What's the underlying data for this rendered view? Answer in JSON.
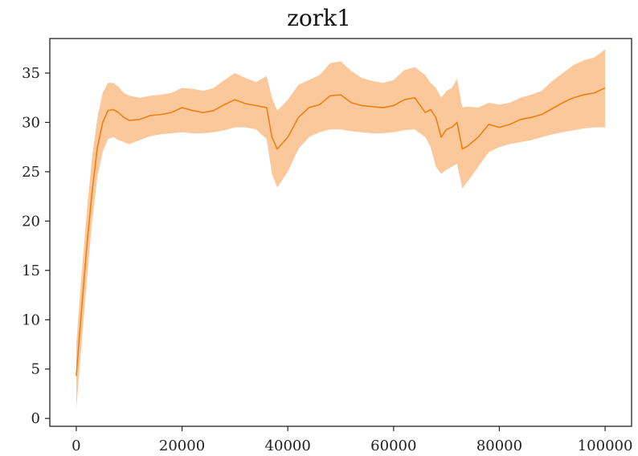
{
  "chart_data": {
    "type": "line",
    "title": "zork1",
    "xlabel": "",
    "ylabel": "",
    "xlim": [
      -5000,
      105000
    ],
    "ylim": [
      -0.8,
      38.5
    ],
    "xticks": [
      0,
      20000,
      40000,
      60000,
      80000,
      100000
    ],
    "yticks": [
      0,
      5,
      10,
      15,
      20,
      25,
      30,
      35
    ],
    "grid": false,
    "legend": "none",
    "colors": {
      "line": "#f07f13",
      "band": "#fbc597"
    },
    "series": [
      {
        "x": [
          0,
          1000,
          2000,
          3000,
          4000,
          5000,
          6000,
          7000,
          8000,
          9000,
          10000,
          12000,
          14000,
          16000,
          18000,
          20000,
          22000,
          24000,
          26000,
          28000,
          30000,
          32000,
          34000,
          36000,
          37000,
          38000,
          40000,
          42000,
          44000,
          46000,
          48000,
          50000,
          52000,
          54000,
          56000,
          58000,
          60000,
          62000,
          64000,
          66000,
          67000,
          68000,
          69000,
          70000,
          71000,
          72000,
          73000,
          74000,
          76000,
          78000,
          80000,
          82000,
          84000,
          86000,
          88000,
          90000,
          92000,
          94000,
          96000,
          98000,
          100000
        ],
        "mean": [
          4.3,
          11,
          17.5,
          23,
          27.5,
          30,
          31.2,
          31.3,
          31,
          30.5,
          30.2,
          30.3,
          30.7,
          30.8,
          31,
          31.5,
          31.2,
          31,
          31.2,
          31.8,
          32.3,
          31.9,
          31.7,
          31.5,
          28.5,
          27.3,
          28.5,
          30.5,
          31.5,
          31.8,
          32.7,
          32.8,
          32,
          31.7,
          31.6,
          31.5,
          31.7,
          32.3,
          32.5,
          31,
          31.3,
          30.5,
          28.5,
          29.3,
          29.5,
          30,
          27.3,
          27.6,
          28.5,
          29.8,
          29.5,
          29.8,
          30.3,
          30.5,
          30.8,
          31.4,
          32,
          32.5,
          32.8,
          33,
          33.5
        ],
        "lower": [
          1,
          7.5,
          14,
          20,
          24.5,
          27,
          28.3,
          28.5,
          28.2,
          28,
          27.8,
          28.2,
          28.6,
          28.8,
          28.9,
          29,
          28.9,
          28.9,
          29,
          29.2,
          29.5,
          29.5,
          29.3,
          28.3,
          24.8,
          23.4,
          25,
          27.3,
          28.5,
          29,
          29.3,
          29.3,
          29.1,
          29,
          28.9,
          28.9,
          29,
          29.2,
          29.3,
          28.5,
          27.5,
          25.5,
          24.8,
          25.2,
          25.5,
          25.8,
          23.3,
          24,
          25.5,
          27,
          27.5,
          27.8,
          28,
          28.2,
          28.5,
          28.8,
          29,
          29.2,
          29.4,
          29.5,
          29.5
        ],
        "upper": [
          7.5,
          14.5,
          21,
          26.5,
          30.5,
          33,
          34,
          34,
          33.6,
          33,
          32.7,
          32.5,
          32.7,
          32.8,
          33,
          33.5,
          33.4,
          33.2,
          33.5,
          34.3,
          35,
          34.5,
          34.1,
          34.7,
          32.5,
          31.2,
          32.3,
          33.8,
          34.3,
          34.8,
          36,
          36.2,
          35.2,
          34.5,
          34.2,
          34,
          34.3,
          35.3,
          35.6,
          34.8,
          34,
          33.5,
          32.5,
          33.2,
          33.5,
          34.4,
          31.5,
          31.6,
          31.5,
          32,
          31.8,
          32,
          32.5,
          32.8,
          33.2,
          34.2,
          35,
          35.8,
          36.3,
          36.6,
          37.4
        ]
      }
    ]
  }
}
